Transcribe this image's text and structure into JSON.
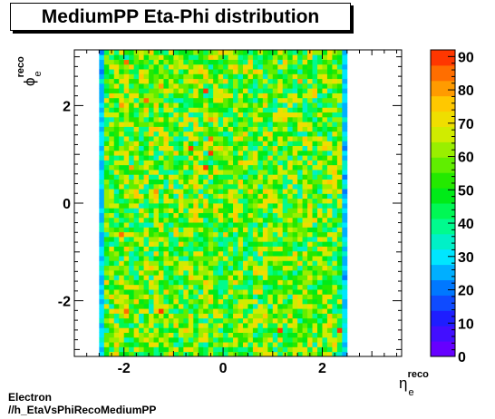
{
  "chart_data": {
    "type": "heatmap",
    "title": "MediumPP Eta-Phi distribution",
    "xlabel": {
      "base": "η",
      "sup": "reco",
      "sub": "e"
    },
    "ylabel": {
      "base": "ϕ",
      "sup": "reco",
      "sub": "e"
    },
    "xlim": [
      -3.0,
      3.6
    ],
    "ylim": [
      -3.1416,
      3.1416
    ],
    "x_ticks": [
      -2,
      0,
      2
    ],
    "y_ticks": [
      -2,
      0,
      2
    ],
    "x_bins": {
      "min": -2.5,
      "max": 2.5,
      "count": 50
    },
    "y_bins": {
      "min": -3.1416,
      "max": 3.1416,
      "count": 64
    },
    "colorbar": {
      "min": 0,
      "max": 92,
      "ticks": [
        0,
        10,
        20,
        30,
        40,
        50,
        60,
        70,
        80,
        90
      ]
    },
    "grid": false,
    "typical_range": [
      35,
      75
    ],
    "edge_columns_value": 30
  },
  "footer": {
    "line1": "Electron",
    "line2": "//h_EtaVsPhiRecoMediumPP"
  }
}
